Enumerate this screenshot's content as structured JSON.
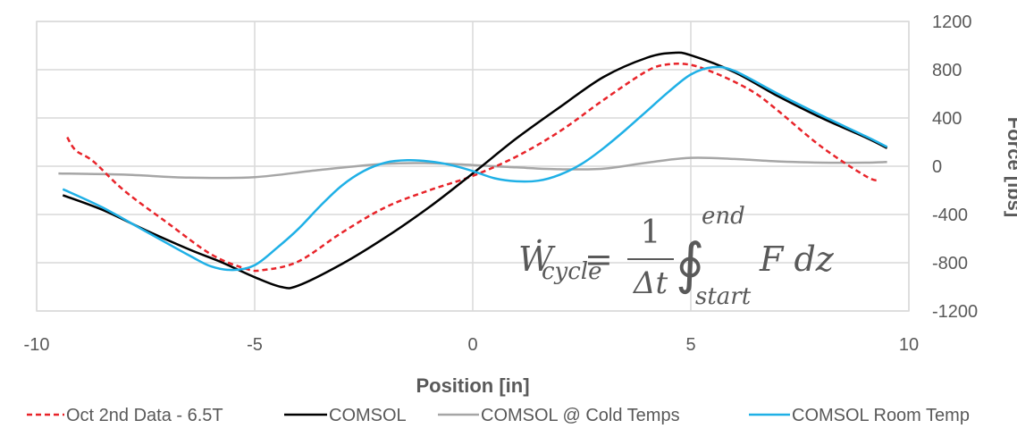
{
  "chart_data": {
    "type": "line",
    "xlabel": "Position [in]",
    "ylabel": "Force [lbs]",
    "xlim": [
      -10,
      10
    ],
    "ylim": [
      -1200,
      1200
    ],
    "x_ticks": [
      -10,
      -5,
      0,
      5,
      10
    ],
    "y_ticks": [
      -1200,
      -800,
      -400,
      0,
      400,
      800,
      1200
    ],
    "x_tick_labels": [
      "-10",
      "-5",
      "0",
      "5",
      "10"
    ],
    "y_tick_labels": [
      "-1200",
      "-800",
      "-400",
      "0",
      "400",
      "800",
      "1200"
    ],
    "grid": true,
    "y_axis_position": "right",
    "legend_position": "bottom",
    "formula": {
      "lhs": "Ẇ",
      "lhs_sub": "cycle",
      "equals": "=",
      "numerator": "1",
      "denominator": "Δt",
      "integral": "∮",
      "upper": "end",
      "lower": "start",
      "integrand": "F dz"
    },
    "series": [
      {
        "name": "Oct 2nd Data - 6.5T",
        "color": "#e8242a",
        "dash": true,
        "x": [
          -9.3,
          -9.1,
          -8.7,
          -8.0,
          -7.0,
          -6.0,
          -5.2,
          -4.8,
          -4.0,
          -3.0,
          -2.0,
          -1.0,
          0.0,
          1.0,
          2.0,
          3.0,
          4.0,
          4.5,
          5.0,
          5.5,
          6.0,
          6.5,
          7.0,
          8.0,
          9.0,
          9.3
        ],
        "y": [
          240,
          130,
          40,
          -200,
          -470,
          -730,
          -850,
          -860,
          -790,
          -550,
          -340,
          -200,
          -80,
          80,
          290,
          550,
          790,
          845,
          840,
          780,
          700,
          600,
          460,
          160,
          -80,
          -120
        ]
      },
      {
        "name": "COMSOL",
        "color": "#000000",
        "dash": false,
        "x": [
          -9.4,
          -8.5,
          -7.5,
          -6.5,
          -5.8,
          -5.0,
          -4.4,
          -4.0,
          -3.0,
          -2.0,
          -1.0,
          0.0,
          1.0,
          2.0,
          3.0,
          4.0,
          4.6,
          5.0,
          6.0,
          7.0,
          8.0,
          9.0,
          9.5
        ],
        "y": [
          -240,
          -360,
          -530,
          -690,
          -790,
          -920,
          -1000,
          -990,
          -810,
          -590,
          -340,
          -60,
          230,
          490,
          740,
          900,
          940,
          920,
          780,
          580,
          400,
          240,
          150
        ]
      },
      {
        "name": "COMSOL @ Cold Temps",
        "color": "#a6a6a6",
        "dash": false,
        "x": [
          -9.5,
          -8.0,
          -6.5,
          -5.0,
          -3.5,
          -2.0,
          -1.0,
          0.0,
          1.0,
          2.0,
          3.0,
          4.0,
          5.0,
          6.0,
          7.0,
          8.0,
          9.0,
          9.5
        ],
        "y": [
          -60,
          -70,
          -95,
          -90,
          -30,
          20,
          25,
          10,
          -10,
          -25,
          -20,
          30,
          70,
          60,
          40,
          30,
          30,
          35
        ],
        "name_display": "COMSOL @ Cold Temps"
      },
      {
        "name": "COMSOL Room Temp",
        "color": "#1fb0e6",
        "dash": false,
        "x": [
          -9.4,
          -8.5,
          -7.5,
          -6.5,
          -6.0,
          -5.5,
          -5.0,
          -4.5,
          -4.0,
          -3.5,
          -3.0,
          -2.5,
          -2.0,
          -1.5,
          -1.0,
          -0.5,
          0.0,
          0.5,
          1.0,
          1.5,
          2.0,
          2.5,
          3.0,
          3.5,
          4.0,
          4.5,
          5.0,
          5.5,
          6.0,
          7.0,
          8.0,
          9.0,
          9.5
        ],
        "y": [
          -190,
          -340,
          -540,
          -740,
          -830,
          -860,
          -820,
          -680,
          -520,
          -330,
          -160,
          -40,
          30,
          50,
          40,
          10,
          -40,
          -100,
          -125,
          -120,
          -70,
          20,
          150,
          300,
          460,
          620,
          760,
          820,
          790,
          600,
          420,
          250,
          160
        ]
      }
    ]
  }
}
